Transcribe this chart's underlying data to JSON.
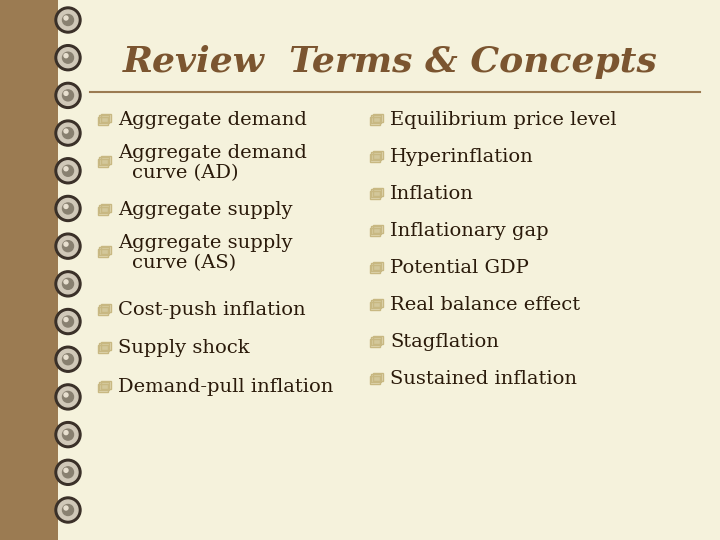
{
  "title": "Review  Terms & Concepts",
  "title_color": "#7B5530",
  "title_fontsize": 26,
  "background_color": "#F5F2DC",
  "sidebar_color": "#9B7B52",
  "line_color": "#9B7B52",
  "text_color": "#2A1A0A",
  "bullet_color": "#C8B882",
  "left_items_line1": [
    "Aggregate demand",
    "Aggregate demand",
    "Aggregate supply",
    "Aggregate supply",
    "Cost-push inflation",
    "Supply shock",
    "Demand-pull inflation"
  ],
  "left_items_line2": [
    "",
    "  curve (AD)",
    "",
    "  curve (AS)",
    "",
    "",
    ""
  ],
  "right_items": [
    "Equilibrium price level",
    "Hyperinflation",
    "Inflation",
    "Inflationary gap",
    "Potential GDP",
    "Real balance effect",
    "Stagflation",
    "Sustained inflation"
  ],
  "item_fontsize": 14,
  "spiral_dark": "#3A3028",
  "spiral_light": "#D0C8B8",
  "spiral_mid": "#888070"
}
